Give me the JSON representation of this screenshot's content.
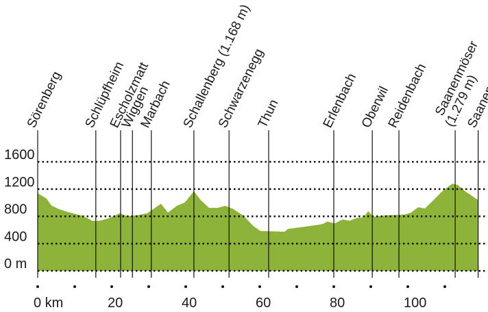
{
  "chart_data": {
    "type": "area",
    "color": "#8db33a",
    "x": [
      0,
      0.9,
      2.4,
      3.7,
      5.6,
      8.3,
      12,
      14.8,
      16.7,
      19.4,
      22.2,
      24.1,
      26.9,
      29.6,
      33.3,
      35.2,
      37.6,
      39.8,
      42.2,
      44.1,
      46.3,
      48.7,
      50.6,
      52.8,
      55.6,
      58.3,
      60.2,
      66.7,
      67.6,
      73.1,
      76.9,
      78.3,
      80.2,
      82.4,
      84.3,
      86.1,
      88,
      89.3,
      90.7,
      94.4,
      99.1,
      100.9,
      102.8,
      104.6,
      106.5,
      109.3,
      112,
      113.5,
      115.7,
      119
    ],
    "values": [
      1140,
      1110,
      1060,
      960,
      910,
      860,
      810,
      735,
      735,
      775,
      845,
      805,
      815,
      845,
      985,
      855,
      955,
      1005,
      1168,
      1035,
      925,
      925,
      955,
      910,
      810,
      655,
      585,
      575,
      615,
      655,
      685,
      725,
      695,
      755,
      735,
      775,
      785,
      875,
      795,
      815,
      825,
      855,
      935,
      915,
      1015,
      1168,
      1279,
      1260,
      1160,
      1040
    ],
    "xlim": [
      0,
      119
    ],
    "ylim": [
      0,
      1600
    ],
    "xticks": [
      {
        "value": 0,
        "label": "0 km"
      },
      20,
      40,
      60,
      80,
      100
    ],
    "xminor_ticks": [
      10,
      30,
      50,
      70,
      90,
      110
    ],
    "yticks": [
      {
        "value": 0,
        "label": "0 m"
      },
      400,
      800,
      1200,
      1600
    ],
    "grid": true,
    "places": [
      {
        "km": 0,
        "lines": [
          "Sörenberg"
        ]
      },
      {
        "km": 15.7,
        "lines": [
          "Schlüpfheim"
        ]
      },
      {
        "km": 22.4,
        "lines": [
          "Escholzmatt"
        ]
      },
      {
        "km": 25.6,
        "lines": [
          "Wiggen"
        ]
      },
      {
        "km": 30.7,
        "lines": [
          "Marbach"
        ]
      },
      {
        "km": 42.2,
        "lines": [
          "Schallenberg (1.168 m)"
        ]
      },
      {
        "km": 51.7,
        "lines": [
          "Schwarzenegg"
        ]
      },
      {
        "km": 62.4,
        "lines": [
          "Thun"
        ]
      },
      {
        "km": 80,
        "lines": [
          "Erlenbach"
        ]
      },
      {
        "km": 90.4,
        "lines": [
          "Oberwil"
        ]
      },
      {
        "km": 97.6,
        "lines": [
          "Reidenbach"
        ]
      },
      {
        "km": 112.8,
        "lines": [
          "Saanenmöser",
          "(1.279 m)"
        ]
      },
      {
        "km": 119,
        "lines": [
          "Saanen"
        ]
      }
    ]
  }
}
